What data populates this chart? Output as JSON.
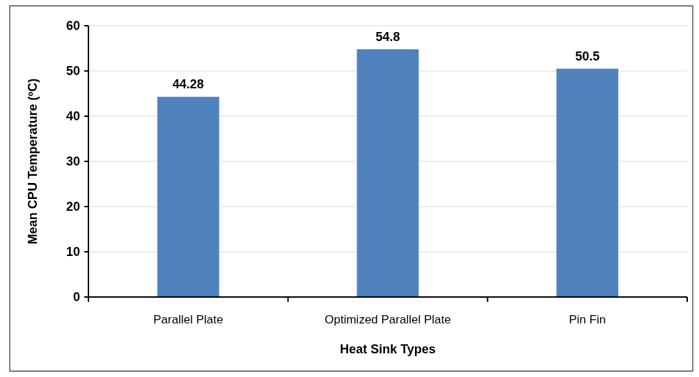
{
  "chart_data": {
    "type": "bar",
    "xlabel": "Heat Sink Types",
    "ylabel": "Mean CPU Temperature (ºC)",
    "categories": [
      "Parallel Plate",
      "Optimized Parallel Plate",
      "Pin Fin"
    ],
    "values": [
      44.28,
      54.8,
      50.5
    ],
    "color": "#4f81bd",
    "ylim": [
      0,
      60
    ],
    "yticks": [
      0,
      10,
      20,
      30,
      40,
      50,
      60
    ],
    "grid": "y",
    "data_labels": true
  }
}
